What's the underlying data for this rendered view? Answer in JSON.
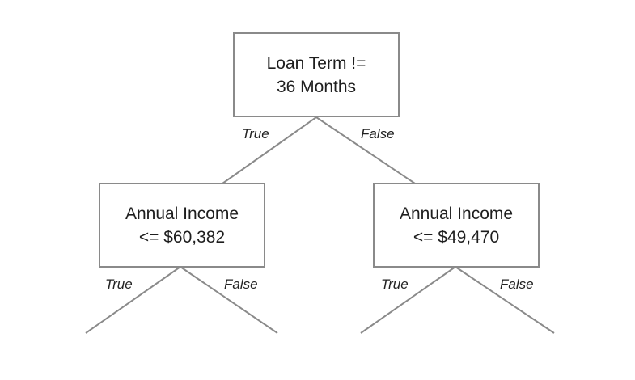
{
  "tree": {
    "root": {
      "line1": "Loan Term !=",
      "line2": "36 Months"
    },
    "left": {
      "line1": "Annual Income",
      "line2": "<= $60,382"
    },
    "right": {
      "line1": "Annual Income",
      "line2": "<= $49,470"
    }
  },
  "edge_labels": {
    "root_true": "True",
    "root_false": "False",
    "left_true": "True",
    "left_false": "False",
    "right_true": "True",
    "right_false": "False"
  },
  "colors": {
    "line": "#8a8a8a",
    "text": "#1e1e1e"
  }
}
